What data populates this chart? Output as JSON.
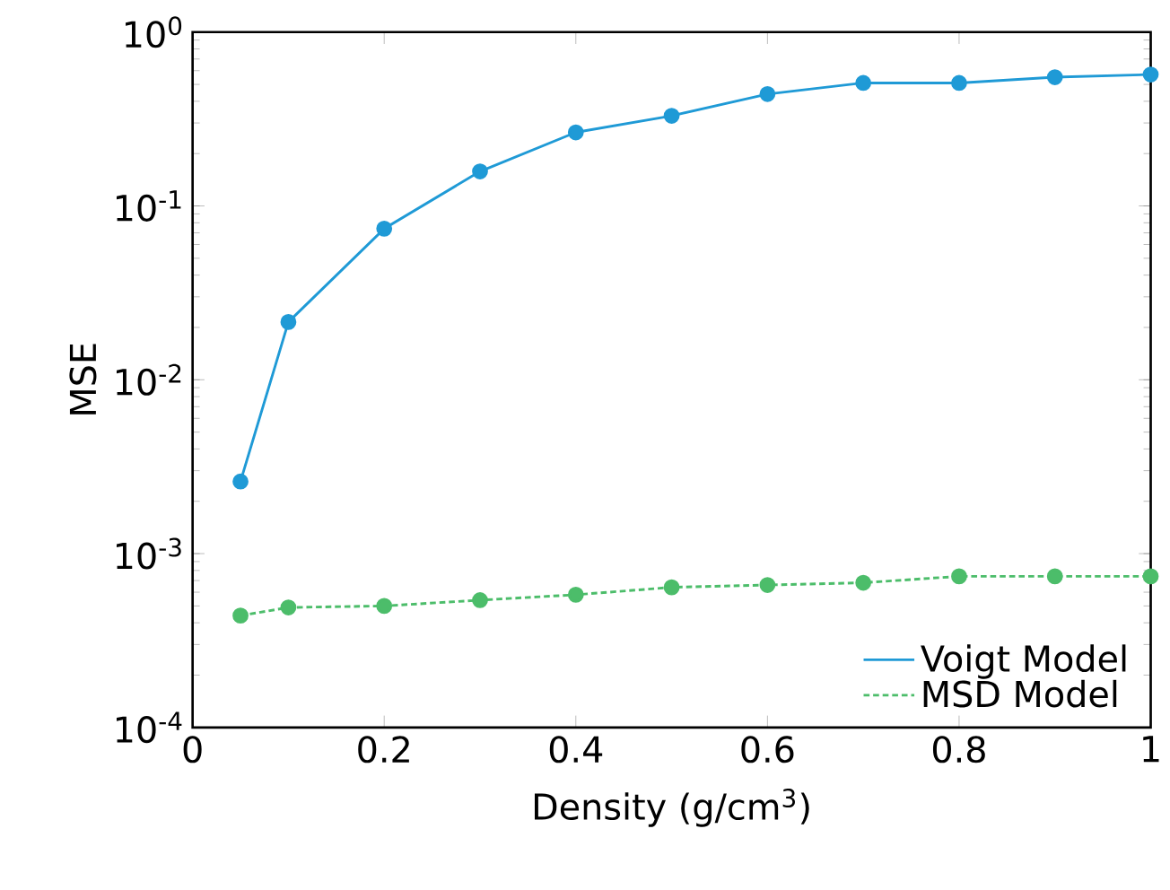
{
  "chart_data": {
    "type": "line",
    "xlabel": "Density (g/cm$^{3}$)",
    "ylabel": "MSE",
    "log": "y",
    "xlim": [
      0,
      1
    ],
    "xticks": [
      0,
      0.2,
      0.4,
      0.6,
      0.8,
      1
    ],
    "ylim": [
      0.0001,
      1
    ],
    "yticks": [
      {
        "value": 0.0001,
        "label": "10$^{-4}$"
      },
      {
        "value": 0.001,
        "label": "10$^{-3}$"
      },
      {
        "value": 0.01,
        "label": "10$^{-2}$"
      },
      {
        "value": 0.1,
        "label": "10$^{-1}$"
      },
      {
        "value": 1,
        "label": "10$^{0}$"
      }
    ],
    "x": [
      0.05,
      0.1,
      0.2,
      0.3,
      0.4,
      0.5,
      0.6,
      0.7,
      0.8,
      0.9,
      1.0
    ],
    "marker": "circle",
    "legend": "bottom right",
    "series": [
      {
        "name": "Voigt Model",
        "color": "#1f9ad6",
        "line_style": "solid",
        "values": [
          0.0026,
          0.0215,
          0.074,
          0.158,
          0.265,
          0.33,
          0.44,
          0.51,
          0.51,
          0.55,
          0.57
        ]
      },
      {
        "name": "MSD Model",
        "color": "#4cbd6a",
        "line_style": "dashed",
        "values": [
          0.00044,
          0.00049,
          0.0005,
          0.00054,
          0.00058,
          0.00064,
          0.00066,
          0.00068,
          0.00074,
          0.00074,
          0.00074
        ]
      }
    ]
  }
}
